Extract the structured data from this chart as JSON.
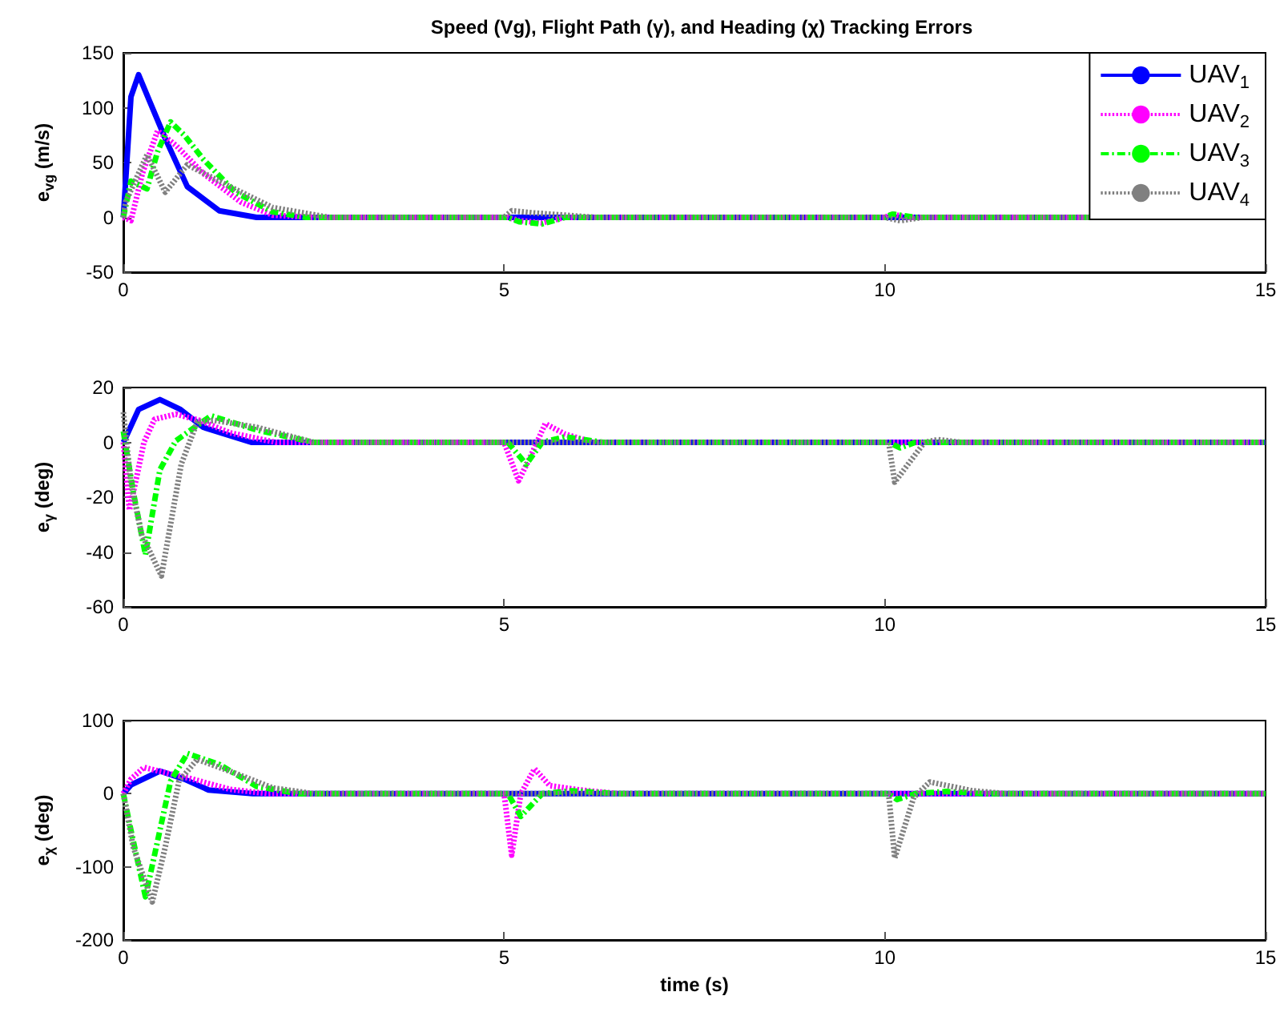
{
  "chart_data": [
    {
      "type": "line",
      "title": "Speed (Vg), Flight Path (γ), and Heading (χ) Tracking Errors",
      "ylabel": "e$_{vg}$ (m/s)",
      "xlim": [
        0,
        15
      ],
      "xticks": [
        0,
        5,
        10,
        15
      ],
      "ylim": [
        -50,
        150
      ],
      "yticks": [
        -50,
        0,
        50,
        100,
        150
      ],
      "legend": "top right",
      "series": [
        {
          "name": "UAV$_{1}$",
          "color": "#0000ff",
          "line_style": "solid",
          "x": [
            0,
            0.1,
            0.2,
            0.35,
            0.55,
            0.84,
            1.26,
            1.75,
            15
          ],
          "values": [
            0,
            110,
            130,
            105,
            72,
            28,
            6,
            0,
            0
          ]
        },
        {
          "name": "UAV$_{2}$",
          "color": "#ff00ff",
          "line_style": "dotted",
          "x": [
            0,
            0.1,
            0.25,
            0.45,
            0.7,
            1.05,
            1.54,
            1.96,
            2.5,
            5.05,
            5.2,
            5.5,
            5.8,
            10.0,
            10.1,
            10.3,
            15
          ],
          "values": [
            0,
            -3,
            40,
            79,
            65,
            40,
            14,
            2,
            0,
            0,
            -3,
            -5,
            0,
            0,
            3,
            0,
            0
          ]
        },
        {
          "name": "UAV$_{3}$",
          "color": "#00ff00",
          "line_style": "dashed",
          "x": [
            0,
            0.1,
            0.31,
            0.45,
            0.62,
            0.8,
            1.05,
            1.47,
            1.96,
            2.4,
            5.05,
            5.2,
            5.5,
            5.8,
            10.0,
            10.1,
            10.4,
            15
          ],
          "values": [
            0,
            33,
            26,
            60,
            87,
            75,
            53,
            23,
            5,
            0,
            0,
            -4,
            -6,
            0,
            0,
            3,
            0,
            0
          ]
        },
        {
          "name": "UAV$_{4}$",
          "color": "#808080",
          "line_style": "dotted",
          "x": [
            0,
            0.03,
            0.31,
            0.55,
            0.84,
            1.4,
            1.96,
            2.7,
            5.0,
            5.1,
            5.4,
            6.2,
            10.0,
            10.2,
            10.5,
            15
          ],
          "values": [
            0,
            14,
            57,
            23,
            48,
            28,
            9,
            0,
            0,
            6,
            4,
            0,
            0,
            -3,
            0,
            0
          ]
        }
      ]
    },
    {
      "type": "line",
      "ylabel": "e$_{γ}$ (deg)",
      "xlim": [
        0,
        15
      ],
      "xticks": [
        0,
        5,
        10,
        15
      ],
      "ylim": [
        -60,
        20
      ],
      "yticks": [
        -60,
        -40,
        -20,
        0,
        20
      ],
      "series": [
        {
          "color": "#0000ff",
          "line_style": "solid",
          "x": [
            0,
            0.06,
            0.2,
            0.48,
            0.75,
            1.05,
            1.68,
            15
          ],
          "values": [
            0,
            3.5,
            12,
            15.6,
            12,
            5.5,
            0,
            0
          ]
        },
        {
          "color": "#ff00ff",
          "line_style": "dotted",
          "x": [
            0,
            0.08,
            0.18,
            0.27,
            0.41,
            0.69,
            1.0,
            1.4,
            2.0,
            5.0,
            5.19,
            5.35,
            5.54,
            5.8,
            6.17,
            15
          ],
          "values": [
            0,
            -24.7,
            -12,
            0,
            8.4,
            10.3,
            8,
            3.5,
            0,
            0,
            -14,
            -5,
            6.8,
            3,
            0,
            0
          ]
        },
        {
          "color": "#00ff00",
          "line_style": "dashed",
          "x": [
            0,
            0.13,
            0.29,
            0.48,
            0.69,
            1.15,
            1.75,
            2.5,
            5.05,
            5.29,
            5.5,
            5.8,
            6.3,
            10.05,
            10.2,
            10.4,
            15
          ],
          "values": [
            4,
            -18,
            -41,
            -10,
            0.6,
            9.7,
            4.5,
            0,
            0,
            -8,
            0,
            2,
            0,
            0,
            -2,
            0,
            0
          ]
        },
        {
          "color": "#808080",
          "line_style": "dotted",
          "x": [
            0,
            0.1,
            0.24,
            0.5,
            0.76,
            0.97,
            1.2,
            1.75,
            2.5,
            10.05,
            10.13,
            10.52,
            10.7,
            11,
            15
          ],
          "values": [
            11,
            -15,
            -33.5,
            -48.7,
            -8,
            7.4,
            8,
            5.5,
            0,
            0,
            -14.5,
            0,
            1,
            0,
            0
          ]
        }
      ]
    },
    {
      "type": "line",
      "ylabel": "e$_{χ}$ (deg)",
      "xlabel": "time (s)",
      "xlim": [
        0,
        15
      ],
      "xticks": [
        0,
        5,
        10,
        15
      ],
      "ylim": [
        -200,
        100
      ],
      "yticks": [
        -200,
        -100,
        0,
        100
      ],
      "series": [
        {
          "color": "#0000ff",
          "line_style": "solid",
          "x": [
            0,
            0.1,
            0.48,
            0.8,
            1.12,
            1.7,
            15
          ],
          "values": [
            0,
            12,
            31,
            20,
            5,
            0,
            0
          ]
        },
        {
          "color": "#ff00ff",
          "line_style": "dotted",
          "x": [
            0,
            0.1,
            0.27,
            0.5,
            0.87,
            1.4,
            1.9,
            5.0,
            5.1,
            5.22,
            5.4,
            5.6,
            6.0,
            6.5,
            15
          ],
          "values": [
            0,
            20,
            36,
            30,
            21,
            6,
            0,
            0,
            -84,
            0,
            34,
            11,
            5,
            0,
            0
          ]
        },
        {
          "color": "#00ff00",
          "line_style": "dashed",
          "x": [
            0,
            0.1,
            0.29,
            0.48,
            0.62,
            0.84,
            1.26,
            1.75,
            2.3,
            5.05,
            5.22,
            5.5,
            5.89,
            6.5,
            10.05,
            10.16,
            10.4,
            10.8,
            11.3,
            15
          ],
          "values": [
            0,
            -50,
            -141,
            -50,
            17,
            55,
            40,
            10,
            0,
            0,
            -31,
            0,
            4,
            0,
            0,
            -8,
            0,
            3,
            0,
            0
          ]
        },
        {
          "color": "#808080",
          "line_style": "dotted",
          "x": [
            0,
            0.13,
            0.38,
            0.55,
            0.73,
            0.97,
            1.47,
            1.96,
            2.5,
            10.05,
            10.13,
            10.38,
            10.59,
            11.15,
            11.6,
            15
          ],
          "values": [
            0,
            -73,
            -148,
            -73,
            17,
            47,
            28,
            8,
            0,
            0,
            -88,
            -5,
            16,
            4,
            0,
            0
          ]
        }
      ]
    }
  ]
}
